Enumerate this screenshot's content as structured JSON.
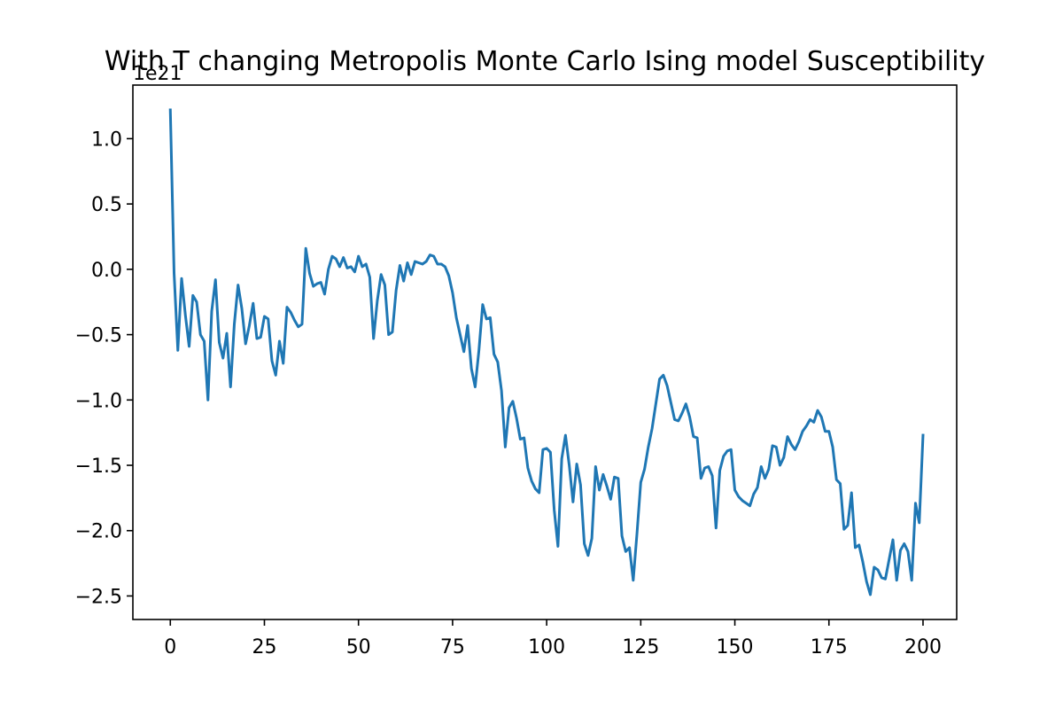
{
  "chart_data": {
    "type": "line",
    "title": "With T changing Metropolis Monte Carlo Ising model Susceptibility",
    "xlabel": "",
    "ylabel": "",
    "y_offset_label": "1e21",
    "y_scale": 1e+21,
    "xlim": [
      -9.95,
      208.95
    ],
    "ylim": [
      -2.68,
      1.41
    ],
    "x_ticks": [
      0,
      25,
      50,
      75,
      100,
      125,
      150,
      175,
      200
    ],
    "x_tick_labels": [
      "0",
      "25",
      "50",
      "75",
      "100",
      "125",
      "150",
      "175",
      "200"
    ],
    "y_ticks": [
      1.0,
      0.5,
      0.0,
      -0.5,
      -1.0,
      -1.5,
      -2.0,
      -2.5
    ],
    "y_tick_labels": [
      "1.0",
      "0.5",
      "0.0",
      "−0.5",
      "−1.0",
      "−1.5",
      "−2.0",
      "−2.5"
    ],
    "grid": false,
    "series_color": "#1f77b4",
    "series": [
      {
        "name": "",
        "x_start": 0,
        "x_step": 1,
        "values": [
          1.22,
          -0.03,
          -0.62,
          -0.07,
          -0.35,
          -0.59,
          -0.2,
          -0.25,
          -0.5,
          -0.55,
          -1.0,
          -0.32,
          -0.08,
          -0.56,
          -0.68,
          -0.49,
          -0.9,
          -0.42,
          -0.12,
          -0.3,
          -0.57,
          -0.43,
          -0.26,
          -0.53,
          -0.52,
          -0.36,
          -0.38,
          -0.7,
          -0.81,
          -0.55,
          -0.72,
          -0.29,
          -0.33,
          -0.39,
          -0.44,
          -0.42,
          0.16,
          -0.03,
          -0.13,
          -0.11,
          -0.1,
          -0.19,
          0.0,
          0.1,
          0.08,
          0.02,
          0.09,
          0.01,
          0.02,
          -0.02,
          0.1,
          0.02,
          0.04,
          -0.06,
          -0.53,
          -0.24,
          -0.04,
          -0.12,
          -0.5,
          -0.48,
          -0.16,
          0.03,
          -0.09,
          0.05,
          -0.04,
          0.06,
          0.05,
          0.04,
          0.06,
          0.11,
          0.1,
          0.04,
          0.04,
          0.02,
          -0.05,
          -0.18,
          -0.37,
          -0.5,
          -0.63,
          -0.43,
          -0.76,
          -0.9,
          -0.62,
          -0.27,
          -0.38,
          -0.37,
          -0.65,
          -0.71,
          -0.93,
          -1.36,
          -1.06,
          -1.01,
          -1.14,
          -1.3,
          -1.29,
          -1.52,
          -1.62,
          -1.68,
          -1.71,
          -1.38,
          -1.37,
          -1.4,
          -1.84,
          -2.12,
          -1.45,
          -1.27,
          -1.5,
          -1.78,
          -1.49,
          -1.65,
          -2.1,
          -2.19,
          -2.06,
          -1.51,
          -1.69,
          -1.57,
          -1.66,
          -1.76,
          -1.59,
          -1.6,
          -2.04,
          -2.16,
          -2.13,
          -2.38,
          -2.02,
          -1.63,
          -1.53,
          -1.36,
          -1.22,
          -1.03,
          -0.84,
          -0.81,
          -0.89,
          -1.02,
          -1.15,
          -1.16,
          -1.1,
          -1.03,
          -1.13,
          -1.28,
          -1.29,
          -1.6,
          -1.52,
          -1.51,
          -1.58,
          -1.98,
          -1.54,
          -1.43,
          -1.39,
          -1.38,
          -1.69,
          -1.74,
          -1.77,
          -1.79,
          -1.81,
          -1.72,
          -1.67,
          -1.51,
          -1.6,
          -1.53,
          -1.35,
          -1.36,
          -1.5,
          -1.44,
          -1.28,
          -1.34,
          -1.38,
          -1.32,
          -1.24,
          -1.2,
          -1.15,
          -1.17,
          -1.08,
          -1.13,
          -1.24,
          -1.24,
          -1.36,
          -1.61,
          -1.64,
          -1.99,
          -1.96,
          -1.71,
          -2.13,
          -2.11,
          -2.24,
          -2.39,
          -2.49,
          -2.28,
          -2.3,
          -2.36,
          -2.37,
          -2.22,
          -2.07,
          -2.38,
          -2.15,
          -2.1,
          -2.16,
          -2.38,
          -1.79,
          -1.94,
          -1.27
        ]
      }
    ]
  }
}
